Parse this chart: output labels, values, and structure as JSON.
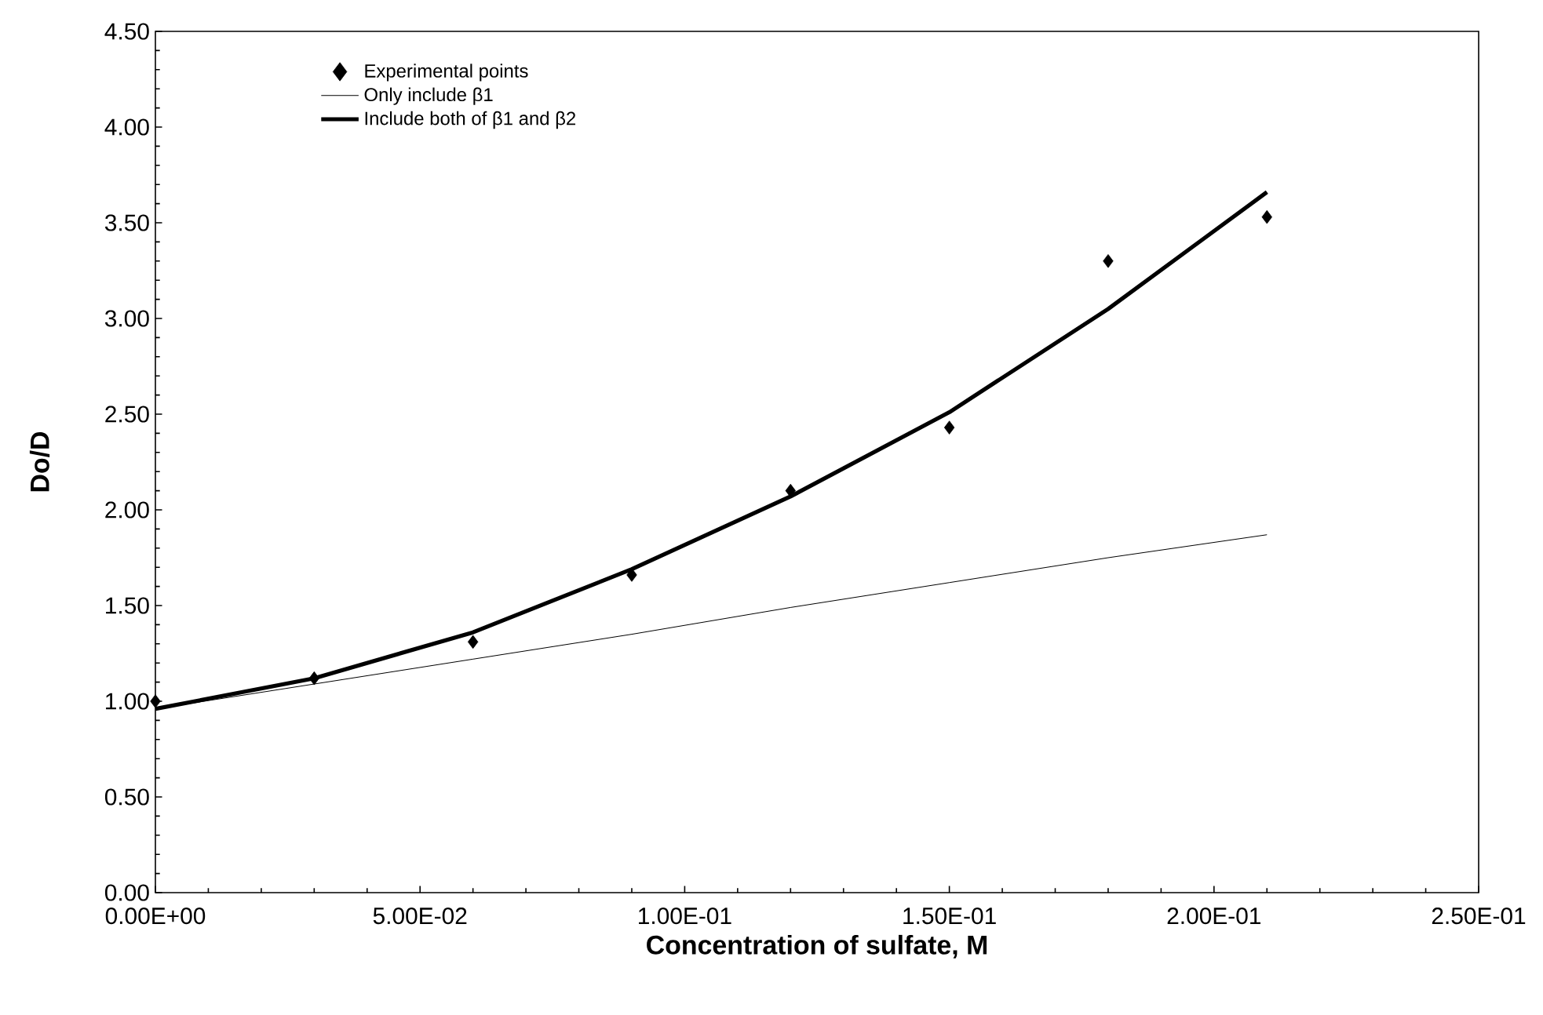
{
  "chart_data": {
    "type": "line",
    "xlabel": "Concentration of sulfate, M",
    "ylabel": "Do/D",
    "x": [
      0,
      0.03,
      0.06,
      0.09,
      0.12,
      0.15,
      0.18,
      0.21
    ],
    "series": [
      {
        "name": "Experimental points",
        "type": "scatter",
        "marker": "diamond",
        "color": "#000000",
        "values": [
          1.0,
          1.12,
          1.31,
          1.66,
          2.1,
          2.43,
          3.3,
          3.53
        ]
      },
      {
        "name": "Only include β1",
        "type": "line",
        "color": "#000000",
        "values": [
          0.96,
          1.09,
          1.22,
          1.35,
          1.49,
          1.62,
          1.75,
          1.87
        ]
      },
      {
        "name": "Include  both of β1 and β2",
        "type": "line",
        "color": "#000000",
        "values": [
          0.96,
          1.12,
          1.36,
          1.69,
          2.07,
          2.51,
          3.05,
          3.66
        ]
      }
    ],
    "xlim": [
      0,
      0.25
    ],
    "xticks": [
      {
        "value": 0,
        "label": "0.00E+00"
      },
      {
        "value": 0.05,
        "label": "5.00E-02"
      },
      {
        "value": 0.1,
        "label": "1.00E-01"
      },
      {
        "value": 0.15,
        "label": "1.50E-01"
      },
      {
        "value": 0.2,
        "label": "2.00E-01"
      },
      {
        "value": 0.25,
        "label": "2.50E-01"
      }
    ],
    "ylim": [
      0,
      4.5
    ],
    "yticks": [
      {
        "value": 0,
        "label": "0.00"
      },
      {
        "value": 0.5,
        "label": "0.50"
      },
      {
        "value": 1,
        "label": "1.00"
      },
      {
        "value": 1.5,
        "label": "1.50"
      },
      {
        "value": 2,
        "label": "2.00"
      },
      {
        "value": 2.5,
        "label": "2.50"
      },
      {
        "value": 3,
        "label": "3.00"
      },
      {
        "value": 3.5,
        "label": "3.50"
      },
      {
        "value": 4,
        "label": "4.00"
      },
      {
        "value": 4.5,
        "label": "4.50"
      }
    ],
    "grid": false,
    "legend": "top left"
  }
}
